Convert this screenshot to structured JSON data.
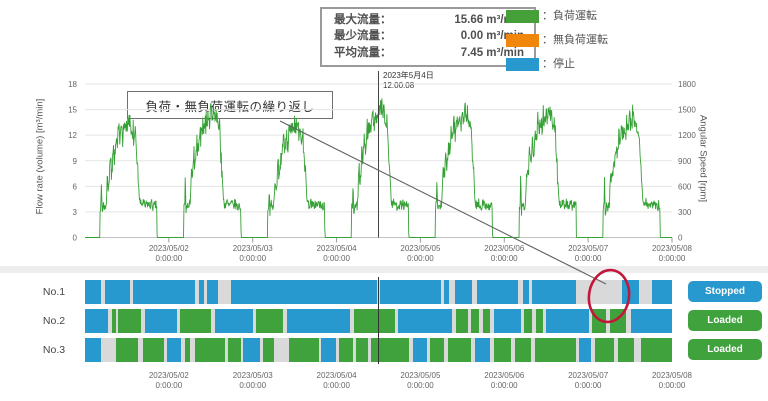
{
  "header": {
    "stats": {
      "rows": [
        {
          "label": "最大流量：",
          "value": "15.66 m³/min"
        },
        {
          "label": "最少流量：",
          "value": "0.00 m³/min"
        },
        {
          "label": "平均流量：",
          "value": "7.45 m³/min"
        }
      ]
    },
    "legend": {
      "items": [
        {
          "label": "：負荷運転",
          "color": "#46A03A"
        },
        {
          "label": "：無負荷運転",
          "color": "#F0860C"
        },
        {
          "label": "：停止",
          "color": "#2799CE"
        }
      ]
    }
  },
  "annotation": {
    "text": "負荷・無負荷運転の繰り返し"
  },
  "cursor": {
    "date": "2023年5月4日",
    "time": "12:00:08"
  },
  "chart_data": [
    {
      "type": "line",
      "name": "flow-rate-timeseries",
      "ylabel_left": "Flow rate (volume) [m³/min]",
      "ylabel_right": "Angular Speed [rpm]",
      "yticks_left": [
        0,
        3,
        6,
        9,
        12,
        15,
        18
      ],
      "yticks_right": [
        0,
        300,
        600,
        900,
        1200,
        1500,
        1800
      ],
      "ylim_left": [
        0,
        18
      ],
      "x_tick_dates": [
        "2023/05/02",
        "2023/05/03",
        "2023/05/04",
        "2023/05/05",
        "2023/05/06",
        "2023/05/07",
        "2023/05/08"
      ],
      "x_tick_time": "0:00:00",
      "line_color": "#35A035",
      "stats": {
        "max": 15.66,
        "min": 0.0,
        "avg": 7.45,
        "unit": "m³/min"
      },
      "daily_profile": [
        [
          0,
          0
        ],
        [
          4.25,
          0
        ],
        [
          4.35,
          5.2
        ],
        [
          4.5,
          2.6
        ],
        [
          4.7,
          6.3
        ],
        [
          4.9,
          3.1
        ],
        [
          5.3,
          3.9
        ],
        [
          5.7,
          3.4
        ],
        [
          6.1,
          4.1
        ],
        [
          6.4,
          6.8
        ],
        [
          6.8,
          6.2
        ],
        [
          7.2,
          8.6
        ],
        [
          7.6,
          7.9
        ],
        [
          8.0,
          10.2
        ],
        [
          8.4,
          9.4
        ],
        [
          8.8,
          11.3
        ],
        [
          9.2,
          10.6
        ],
        [
          9.6,
          12.1
        ],
        [
          10.0,
          11.4
        ],
        [
          10.4,
          12.7
        ],
        [
          10.8,
          11.9
        ],
        [
          11.2,
          13.1
        ],
        [
          11.6,
          12.3
        ],
        [
          12.0,
          13.4
        ],
        [
          12.4,
          12.5
        ],
        [
          12.8,
          13.8
        ],
        [
          13.2,
          12.7
        ],
        [
          13.6,
          13.2
        ],
        [
          14.0,
          11.6
        ],
        [
          14.4,
          12.2
        ],
        [
          14.8,
          9.6
        ],
        [
          15.2,
          7.1
        ],
        [
          15.6,
          4.4
        ],
        [
          16.0,
          3.8
        ],
        [
          16.6,
          4.1
        ],
        [
          17.2,
          3.6
        ],
        [
          17.8,
          4.0
        ],
        [
          18.4,
          3.7
        ],
        [
          19.0,
          4.0
        ],
        [
          19.6,
          3.5
        ],
        [
          20.2,
          3.8
        ],
        [
          20.55,
          3.6
        ],
        [
          20.65,
          0
        ],
        [
          24,
          0
        ]
      ],
      "daily_peaks": [
        13.8,
        15.2,
        13.5,
        15.66,
        15.0,
        15.3,
        14.6
      ]
    },
    {
      "type": "status-timeline",
      "name": "machine-status-timeline",
      "state_colors": {
        "stopped": "#2799CE",
        "loaded": "#3FA23C",
        "none": "#d9d9d9"
      },
      "machines": [
        {
          "label": "No.1",
          "badge": "Stopped",
          "badge_color": "#2799CE",
          "segments": [
            [
              0,
              0.028,
              "stopped"
            ],
            [
              0.034,
              0.076,
              "stopped"
            ],
            [
              0.082,
              0.188,
              "stopped"
            ],
            [
              0.194,
              0.202,
              "stopped"
            ],
            [
              0.208,
              0.226,
              "stopped"
            ],
            [
              0.248,
              0.498,
              "stopped"
            ],
            [
              0.503,
              0.606,
              "stopped"
            ],
            [
              0.612,
              0.62,
              "stopped"
            ],
            [
              0.63,
              0.66,
              "stopped"
            ],
            [
              0.668,
              0.738,
              "stopped"
            ],
            [
              0.746,
              0.756,
              "stopped"
            ],
            [
              0.762,
              0.836,
              "stopped"
            ],
            [
              0.914,
              0.944,
              "stopped"
            ],
            [
              0.966,
              1,
              "stopped"
            ]
          ]
        },
        {
          "label": "No.2",
          "badge": "Loaded",
          "badge_color": "#3FA23C",
          "segments": [
            [
              0,
              0.039,
              "stopped"
            ],
            [
              0.046,
              0.052,
              "loaded"
            ],
            [
              0.056,
              0.096,
              "loaded"
            ],
            [
              0.102,
              0.156,
              "stopped"
            ],
            [
              0.162,
              0.215,
              "loaded"
            ],
            [
              0.222,
              0.286,
              "stopped"
            ],
            [
              0.292,
              0.338,
              "loaded"
            ],
            [
              0.344,
              0.452,
              "stopped"
            ],
            [
              0.458,
              0.528,
              "loaded"
            ],
            [
              0.534,
              0.625,
              "stopped"
            ],
            [
              0.632,
              0.652,
              "loaded"
            ],
            [
              0.658,
              0.672,
              "loaded"
            ],
            [
              0.678,
              0.69,
              "loaded"
            ],
            [
              0.696,
              0.742,
              "stopped"
            ],
            [
              0.748,
              0.762,
              "loaded"
            ],
            [
              0.768,
              0.78,
              "loaded"
            ],
            [
              0.786,
              0.858,
              "stopped"
            ],
            [
              0.864,
              0.888,
              "loaded"
            ],
            [
              0.894,
              0.922,
              "loaded"
            ],
            [
              0.93,
              1,
              "stopped"
            ]
          ]
        },
        {
          "label": "No.3",
          "badge": "Loaded",
          "badge_color": "#3FA23C",
          "segments": [
            [
              0,
              0.027,
              "stopped"
            ],
            [
              0.052,
              0.09,
              "loaded"
            ],
            [
              0.098,
              0.135,
              "loaded"
            ],
            [
              0.14,
              0.164,
              "stopped"
            ],
            [
              0.17,
              0.179,
              "loaded"
            ],
            [
              0.188,
              0.238,
              "loaded"
            ],
            [
              0.244,
              0.266,
              "loaded"
            ],
            [
              0.27,
              0.298,
              "stopped"
            ],
            [
              0.304,
              0.322,
              "loaded"
            ],
            [
              0.348,
              0.398,
              "loaded"
            ],
            [
              0.402,
              0.427,
              "stopped"
            ],
            [
              0.432,
              0.456,
              "loaded"
            ],
            [
              0.462,
              0.482,
              "loaded"
            ],
            [
              0.487,
              0.552,
              "loaded"
            ],
            [
              0.558,
              0.582,
              "stopped"
            ],
            [
              0.588,
              0.612,
              "loaded"
            ],
            [
              0.618,
              0.658,
              "loaded"
            ],
            [
              0.664,
              0.69,
              "stopped"
            ],
            [
              0.696,
              0.726,
              "loaded"
            ],
            [
              0.732,
              0.76,
              "loaded"
            ],
            [
              0.766,
              0.836,
              "loaded"
            ],
            [
              0.842,
              0.862,
              "stopped"
            ],
            [
              0.868,
              0.902,
              "loaded"
            ],
            [
              0.908,
              0.936,
              "loaded"
            ],
            [
              0.948,
              1,
              "loaded"
            ]
          ]
        }
      ]
    }
  ]
}
